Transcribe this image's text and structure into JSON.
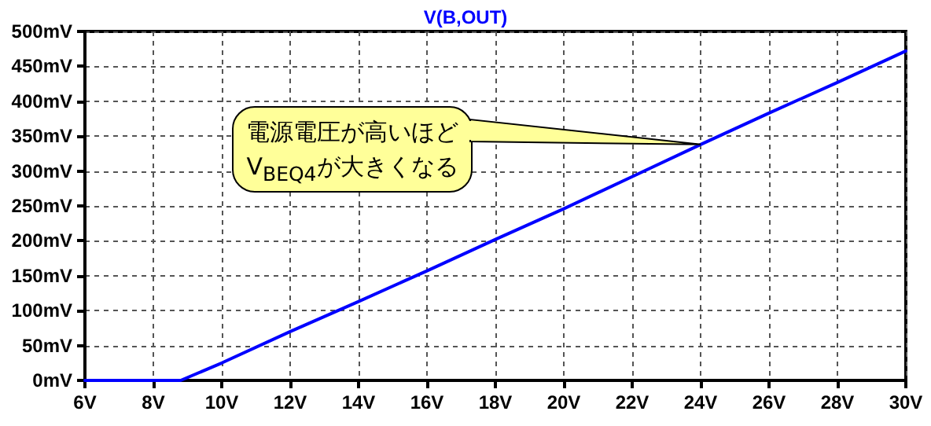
{
  "chart_data": {
    "type": "line",
    "title": "V(B,OUT)",
    "x": [
      6,
      8,
      8.8,
      10,
      12,
      14,
      16,
      18,
      20,
      22,
      24,
      26,
      28,
      30
    ],
    "series": [
      {
        "color": "#0000ff",
        "values": [
          0,
          0,
          0,
          25,
          70,
          113,
          157,
          202,
          246,
          292,
          338,
          383,
          427,
          472
        ]
      }
    ],
    "xlim": [
      6,
      30
    ],
    "xticks": [
      {
        "value": 6,
        "label": "6V"
      },
      {
        "value": 8,
        "label": "8V"
      },
      {
        "value": 10,
        "label": "10V"
      },
      {
        "value": 12,
        "label": "12V"
      },
      {
        "value": 14,
        "label": "14V"
      },
      {
        "value": 16,
        "label": "16V"
      },
      {
        "value": 18,
        "label": "18V"
      },
      {
        "value": 20,
        "label": "20V"
      },
      {
        "value": 22,
        "label": "22V"
      },
      {
        "value": 24,
        "label": "24V"
      },
      {
        "value": 26,
        "label": "26V"
      },
      {
        "value": 28,
        "label": "28V"
      },
      {
        "value": 30,
        "label": "30V"
      }
    ],
    "ylim": [
      0,
      500
    ],
    "yticks": [
      {
        "value": 0,
        "label": "0mV"
      },
      {
        "value": 50,
        "label": "50mV"
      },
      {
        "value": 100,
        "label": "100mV"
      },
      {
        "value": 150,
        "label": "150mV"
      },
      {
        "value": 200,
        "label": "200mV"
      },
      {
        "value": 250,
        "label": "250mV"
      },
      {
        "value": 300,
        "label": "300mV"
      },
      {
        "value": 350,
        "label": "350mV"
      },
      {
        "value": 400,
        "label": "400mV"
      },
      {
        "value": 450,
        "label": "450mV"
      },
      {
        "value": 500,
        "label": "500mV"
      }
    ],
    "grid": true,
    "marker": "none",
    "line_style": "solid",
    "annotations": [
      {
        "text": "電源電圧が高いほど\nV$_{BEQ4}$が大きくなる",
        "x": 24,
        "y": 338
      }
    ]
  }
}
